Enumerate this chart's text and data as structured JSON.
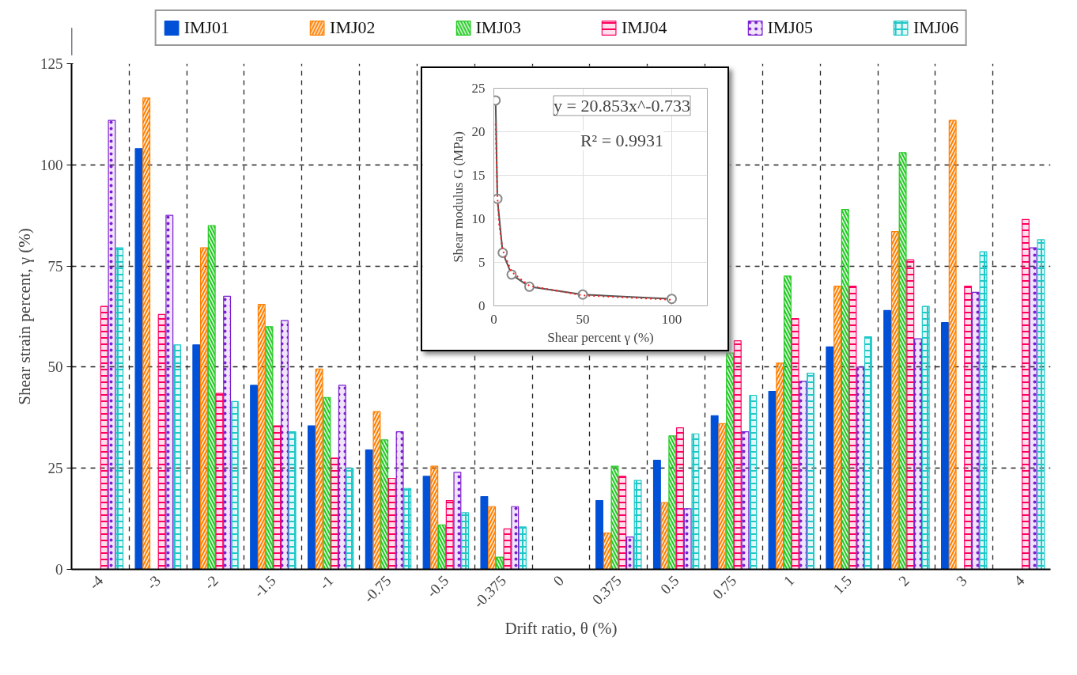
{
  "chart_data": [
    {
      "type": "bar",
      "xlabel": "Drift ratio, θ (%)",
      "ylabel": "Shear strain percent, γ (%)",
      "categories": [
        "-4",
        "-3",
        "-2",
        "-1.5",
        "-1",
        "-0.75",
        "-0.5",
        "-0.375",
        "0",
        "0.375",
        "0.5",
        "0.75",
        "1",
        "1.5",
        "2",
        "3",
        "4"
      ],
      "series": [
        {
          "name": "IMJ01",
          "color": "#0050d8",
          "values": [
            null,
            104,
            55.5,
            45.5,
            35.5,
            29.5,
            23,
            18,
            null,
            17,
            27,
            38,
            44,
            55,
            64,
            61,
            null
          ]
        },
        {
          "name": "IMJ02",
          "color": "#ff7f00",
          "values": [
            null,
            116.5,
            79.5,
            65.5,
            49.5,
            39,
            25.5,
            15.5,
            null,
            9,
            16.5,
            36,
            51,
            70,
            83.5,
            111,
            null
          ]
        },
        {
          "name": "IMJ03",
          "color": "#22c922",
          "values": [
            null,
            null,
            85,
            60,
            42.5,
            32,
            11,
            3,
            null,
            25.5,
            33,
            53.5,
            72.5,
            89,
            103,
            null,
            null
          ]
        },
        {
          "name": "IMJ04",
          "color": "#ff0060",
          "values": [
            65,
            63,
            43.5,
            35.5,
            27.5,
            22.5,
            17,
            10,
            null,
            23,
            35,
            56.5,
            62,
            70,
            76.5,
            70,
            86.5
          ]
        },
        {
          "name": "IMJ05",
          "color": "#7b1fd0",
          "values": [
            111,
            87.5,
            67.5,
            61.5,
            45.5,
            34,
            24,
            15.5,
            null,
            8,
            15,
            34,
            46.5,
            50,
            57,
            68.5,
            79.5
          ]
        },
        {
          "name": "IMJ06",
          "color": "#20c8c8",
          "values": [
            79.5,
            55.5,
            41.5,
            34,
            25,
            20,
            14,
            10.5,
            null,
            22,
            33.5,
            43,
            48.5,
            57.5,
            65,
            78.5,
            81.5
          ]
        }
      ],
      "ylim": [
        0,
        125
      ],
      "yticks": [
        0,
        25,
        50,
        75,
        100,
        125
      ],
      "grid": true,
      "legend": "top"
    },
    {
      "type": "line",
      "xlabel": "Shear percent γ (%)",
      "ylabel": "Shear modulus G (MPa)",
      "series": [
        {
          "color": "#555555",
          "marker": "circle",
          "line_style": "solid",
          "x": [
            1,
            2,
            5,
            10,
            20,
            50,
            100
          ],
          "values": [
            23.6,
            12.3,
            6.1,
            3.6,
            2.2,
            1.3,
            0.8
          ]
        },
        {
          "color": "#ff2020",
          "marker": "none",
          "line_style": "dotted",
          "x": [
            1,
            2,
            3,
            5,
            10,
            20,
            50,
            100
          ],
          "values": [
            20.9,
            12.6,
            9.3,
            6.4,
            3.9,
            2.3,
            1.2,
            0.7
          ]
        }
      ],
      "xlim": [
        0,
        120
      ],
      "xticks": [
        0,
        50,
        100
      ],
      "ylim": [
        0,
        25
      ],
      "yticks": [
        0,
        5,
        10,
        15,
        20,
        25
      ],
      "grid": true,
      "annotations": [
        "y = 20.853x^-0.733",
        "R² = 0.9931"
      ]
    }
  ]
}
